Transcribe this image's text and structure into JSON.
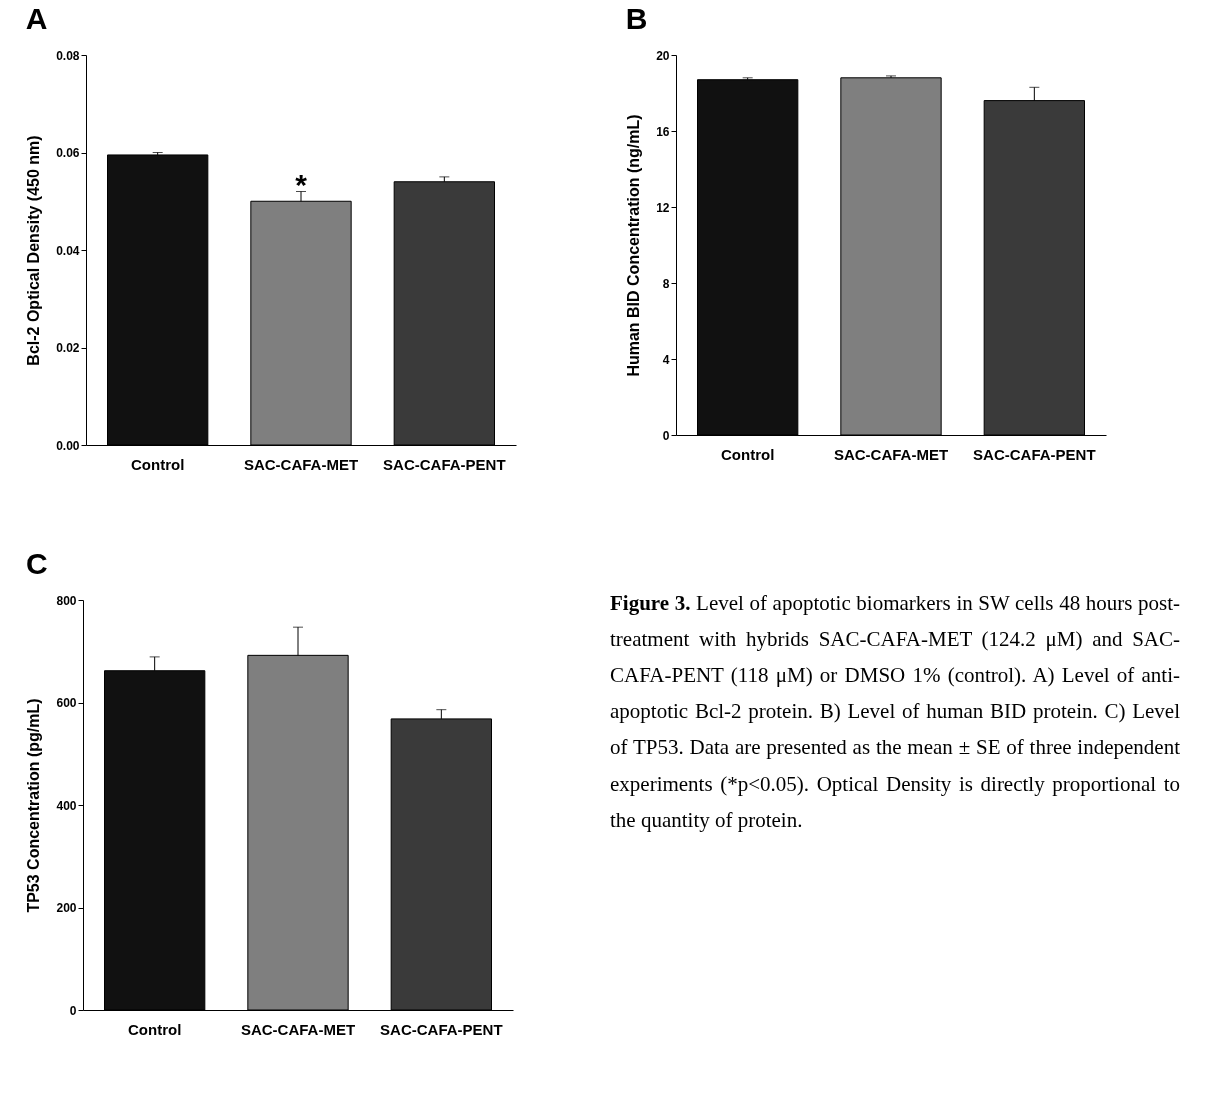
{
  "chart_data": [
    {
      "type": "bar",
      "title": "A",
      "ylabel": "Bcl-2 Optical Density (450 nm)",
      "categories": [
        "Control",
        "SAC-CAFA-MET",
        "SAC-CAFA-PENT"
      ],
      "values": [
        0.0595,
        0.05,
        0.054
      ],
      "errors": [
        0.0005,
        0.002,
        0.001
      ],
      "colors": [
        "#111111",
        "#7f7f7f",
        "#3a3a3a"
      ],
      "ylim": [
        0,
        0.08
      ],
      "yticks": [
        {
          "value": 0,
          "label": "0.00"
        },
        {
          "value": 0.02,
          "label": "0.02"
        },
        {
          "value": 0.04,
          "label": "0.04"
        },
        {
          "value": 0.06,
          "label": "0.06"
        },
        {
          "value": 0.08,
          "label": "0.08"
        }
      ],
      "annotations": [
        {
          "text": "*",
          "x": "SAC-CAFA-MET",
          "y": 0.053
        }
      ]
    },
    {
      "type": "bar",
      "title": "B",
      "ylabel": "Human BID Concentration (ng/mL)",
      "categories": [
        "Control",
        "SAC-CAFA-MET",
        "SAC-CAFA-PENT"
      ],
      "values": [
        18.7,
        18.8,
        17.6
      ],
      "errors": [
        0.1,
        0.1,
        0.7
      ],
      "colors": [
        "#111111",
        "#7f7f7f",
        "#3a3a3a"
      ],
      "ylim": [
        0,
        20
      ],
      "yticks": [
        0,
        4,
        8,
        12,
        16,
        20
      ]
    },
    {
      "type": "bar",
      "title": "C",
      "ylabel": "TP53 Concentration (pg/mL)",
      "categories": [
        "Control",
        "SAC-CAFA-MET",
        "SAC-CAFA-PENT"
      ],
      "values": [
        662,
        692,
        568
      ],
      "errors": [
        27,
        55,
        18
      ],
      "colors": [
        "#111111",
        "#7f7f7f",
        "#3a3a3a"
      ],
      "ylim": [
        0,
        800
      ],
      "yticks": [
        0,
        200,
        400,
        600,
        800
      ]
    },
    {
      "type": "other",
      "title": "Figure 3.",
      "annotations": [
        "Level of apoptotic biomarkers in SW cells 48 hours post-treatment with hybrids SAC-CAFA-MET (124.2 μM) and SAC-CAFA-PENT (118 μM) or DMSO 1% (control). A) Level of anti-apoptotic Bcl-2 protein. B) Level of human BID protein. C) Level of TP53. Data are presented as the mean ± SE of three independent experiments (*p<0.05). Optical Density is directly proportional to the quantity of protein."
      ]
    }
  ]
}
